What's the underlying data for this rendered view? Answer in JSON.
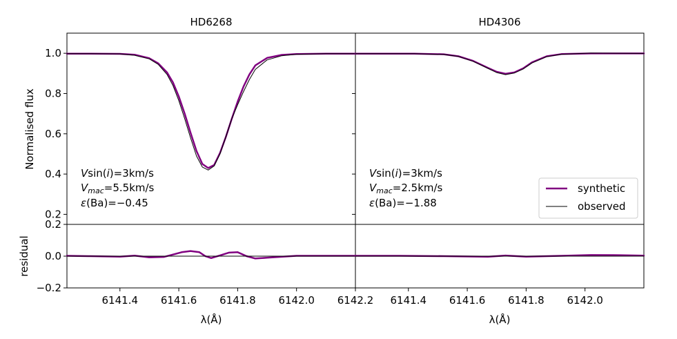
{
  "chart_data": [
    {
      "type": "line",
      "title": "HD6268",
      "ylabel": "Normalised flux",
      "xlabel": "",
      "xlim": [
        6141.22,
        6142.2
      ],
      "ylim": [
        0.15,
        1.1
      ],
      "yticks": [
        "0.2",
        "0.4",
        "0.6",
        "0.8",
        "1.0"
      ],
      "annotation": [
        "Vsin(i)=3km/s",
        "Vmac=5.5km/s",
        "ε(Ba)=−0.45"
      ],
      "series": [
        {
          "name": "synthetic",
          "color": "#800080",
          "x": [
            6141.22,
            6141.3,
            6141.4,
            6141.45,
            6141.5,
            6141.53,
            6141.56,
            6141.58,
            6141.6,
            6141.62,
            6141.64,
            6141.66,
            6141.68,
            6141.7,
            6141.72,
            6141.74,
            6141.76,
            6141.78,
            6141.8,
            6141.82,
            6141.84,
            6141.86,
            6141.9,
            6141.95,
            6142.0,
            6142.1,
            6142.2
          ],
          "y": [
            0.998,
            0.998,
            0.997,
            0.993,
            0.975,
            0.95,
            0.905,
            0.855,
            0.785,
            0.7,
            0.605,
            0.515,
            0.45,
            0.43,
            0.445,
            0.505,
            0.585,
            0.675,
            0.76,
            0.835,
            0.895,
            0.94,
            0.977,
            0.992,
            0.996,
            0.998,
            0.998
          ]
        },
        {
          "name": "observed",
          "color": "#000000",
          "x": [
            6141.22,
            6141.3,
            6141.4,
            6141.45,
            6141.5,
            6141.53,
            6141.56,
            6141.58,
            6141.6,
            6141.62,
            6141.64,
            6141.66,
            6141.68,
            6141.7,
            6141.72,
            6141.74,
            6141.76,
            6141.78,
            6141.8,
            6141.82,
            6141.84,
            6141.86,
            6141.9,
            6141.95,
            6142.0,
            6142.1,
            6142.2
          ],
          "y": [
            0.998,
            0.998,
            0.997,
            0.99,
            0.972,
            0.945,
            0.895,
            0.84,
            0.765,
            0.675,
            0.58,
            0.49,
            0.435,
            0.42,
            0.44,
            0.5,
            0.585,
            0.675,
            0.745,
            0.81,
            0.87,
            0.92,
            0.967,
            0.988,
            0.995,
            0.998,
            0.998
          ]
        }
      ]
    },
    {
      "type": "line",
      "title": "HD4306",
      "ylabel": "",
      "xlabel": "",
      "xlim": [
        6142.2,
        6143.18
      ],
      "ylim": [
        0.15,
        1.1
      ],
      "annotation": [
        "Vsin(i)=3km/s",
        "Vmac=2.5km/s",
        "ε(Ba)=−1.88"
      ],
      "legend": {
        "position": "lower-right",
        "entries": [
          "synthetic",
          "observed"
        ]
      },
      "series": [
        {
          "name": "synthetic",
          "color": "#800080",
          "x": [
            6142.2,
            6142.4,
            6142.5,
            6142.55,
            6142.6,
            6142.65,
            6142.68,
            6142.71,
            6142.74,
            6142.77,
            6142.8,
            6142.85,
            6142.9,
            6143.0,
            6143.18
          ],
          "y": [
            0.998,
            0.998,
            0.995,
            0.985,
            0.962,
            0.928,
            0.908,
            0.898,
            0.905,
            0.925,
            0.955,
            0.985,
            0.996,
            0.999,
            0.999
          ]
        },
        {
          "name": "observed",
          "color": "#000000",
          "x": [
            6142.2,
            6142.4,
            6142.5,
            6142.55,
            6142.6,
            6142.65,
            6142.68,
            6142.71,
            6142.74,
            6142.77,
            6142.8,
            6142.85,
            6142.9,
            6143.0,
            6143.18
          ],
          "y": [
            0.998,
            0.998,
            0.994,
            0.984,
            0.96,
            0.925,
            0.904,
            0.894,
            0.902,
            0.922,
            0.952,
            0.983,
            0.995,
            1.001,
            0.999
          ]
        }
      ]
    },
    {
      "type": "line",
      "ylabel": "residual",
      "xlabel": "λ(Å)",
      "xlim": [
        6141.22,
        6142.2
      ],
      "ylim": [
        -0.2,
        0.2
      ],
      "yticks": [
        "−0.2",
        "0.0",
        "0.2"
      ],
      "xticks": [
        "6141.4",
        "6141.6",
        "6141.8",
        "6142.0",
        "6142.2"
      ],
      "series": [
        {
          "name": "synthetic",
          "color": "#800080",
          "x": [
            6141.22,
            6141.3,
            6141.4,
            6141.45,
            6141.5,
            6141.55,
            6141.58,
            6141.61,
            6141.64,
            6141.67,
            6141.69,
            6141.71,
            6141.74,
            6141.77,
            6141.8,
            6141.83,
            6141.86,
            6141.9,
            6141.95,
            6142.0,
            6142.2
          ],
          "y": [
            0.002,
            0.0,
            -0.003,
            0.003,
            -0.008,
            -0.005,
            0.01,
            0.025,
            0.032,
            0.025,
            0.0,
            -0.012,
            0.005,
            0.022,
            0.025,
            0.0,
            -0.015,
            -0.01,
            -0.004,
            0.002,
            0.002
          ]
        },
        {
          "name": "observed",
          "color": "#000000",
          "x": [
            6141.22,
            6142.2
          ],
          "y": [
            0.0,
            0.0
          ]
        }
      ]
    },
    {
      "type": "line",
      "ylabel": "",
      "xlabel": "λ(Å)",
      "xlim": [
        6142.2,
        6143.18
      ],
      "ylim": [
        -0.2,
        0.2
      ],
      "xticks": [
        "6141.4",
        "6141.6",
        "6141.8",
        "6142.0"
      ],
      "series": [
        {
          "name": "synthetic",
          "color": "#800080",
          "x": [
            6142.2,
            6142.35,
            6142.5,
            6142.65,
            6142.71,
            6142.78,
            6142.9,
            6143.0,
            6143.1,
            6143.18
          ],
          "y": [
            0.002,
            0.002,
            0.0,
            -0.004,
            0.004,
            -0.003,
            0.002,
            0.007,
            0.006,
            0.003
          ]
        },
        {
          "name": "observed",
          "color": "#000000",
          "x": [
            6142.2,
            6143.18
          ],
          "y": [
            0.0,
            0.0
          ]
        }
      ]
    }
  ]
}
